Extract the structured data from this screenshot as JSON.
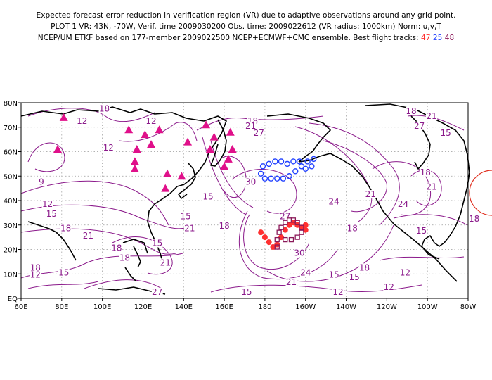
{
  "header": {
    "line1": "Expected forecast error reduction in verification region (VR) due to adaptive observations around any grid point.",
    "line2": "PLOT 1 VR: 43N, -70W, Verif. time 2009030200 Obs. time: 2009022612 (VR radius: 1000km) Norm: u,v,T",
    "line3_prefix": "NCEP/UM ETKF based on 177-member 2009022500 NCEP+ECMWF+CMC ensemble. Best flight tracks:",
    "track_ids": [
      "47",
      "25",
      "48"
    ],
    "track_colors": [
      "#ff3030",
      "#2040ff",
      "#8b1a5a"
    ]
  },
  "chart_data": {
    "type": "contour-map",
    "x_axis": {
      "ticks": [
        "60E",
        "80E",
        "100E",
        "120E",
        "140E",
        "160E",
        "180",
        "160W",
        "140W",
        "120W",
        "100W",
        "80W"
      ],
      "range_deg_east": [
        60,
        280
      ]
    },
    "y_axis": {
      "ticks": [
        "EQ",
        "10N",
        "20N",
        "30N",
        "40N",
        "50N",
        "60N",
        "70N",
        "80N"
      ],
      "range_deg_north": [
        0,
        80
      ]
    },
    "grid": true,
    "contour_color": "#8b1a8b",
    "contour_labels": [
      {
        "text": "18",
        "lon": 101,
        "lat": 77
      },
      {
        "text": "12",
        "lon": 124,
        "lat": 72
      },
      {
        "text": "12",
        "lon": 90,
        "lat": 72
      },
      {
        "text": "18",
        "lon": 174,
        "lat": 72
      },
      {
        "text": "18",
        "lon": 252,
        "lat": 76
      },
      {
        "text": "21",
        "lon": 262,
        "lat": 74
      },
      {
        "text": "27",
        "lon": 256,
        "lat": 70
      },
      {
        "text": "15",
        "lon": 269,
        "lat": 67
      },
      {
        "text": "12",
        "lon": 103,
        "lat": 61
      },
      {
        "text": "21",
        "lon": 173,
        "lat": 70
      },
      {
        "text": "27",
        "lon": 177,
        "lat": 67
      },
      {
        "text": "9",
        "lon": 70,
        "lat": 47
      },
      {
        "text": "12",
        "lon": 73,
        "lat": 38
      },
      {
        "text": "15",
        "lon": 75,
        "lat": 34
      },
      {
        "text": "18",
        "lon": 82,
        "lat": 28
      },
      {
        "text": "18",
        "lon": 67,
        "lat": 12
      },
      {
        "text": "21",
        "lon": 93,
        "lat": 25
      },
      {
        "text": "15",
        "lon": 127,
        "lat": 22
      },
      {
        "text": "15",
        "lon": 141,
        "lat": 33
      },
      {
        "text": "21",
        "lon": 143,
        "lat": 28
      },
      {
        "text": "15",
        "lon": 152,
        "lat": 41
      },
      {
        "text": "30",
        "lon": 173,
        "lat": 47
      },
      {
        "text": "24",
        "lon": 214,
        "lat": 39
      },
      {
        "text": "21",
        "lon": 232,
        "lat": 42
      },
      {
        "text": "24",
        "lon": 248,
        "lat": 38
      },
      {
        "text": "18",
        "lon": 259,
        "lat": 51
      },
      {
        "text": "21",
        "lon": 262,
        "lat": 45
      },
      {
        "text": "18",
        "lon": 283,
        "lat": 32
      },
      {
        "text": "15",
        "lon": 257,
        "lat": 27
      },
      {
        "text": "18",
        "lon": 223,
        "lat": 28
      },
      {
        "text": "27",
        "lon": 190,
        "lat": 33
      },
      {
        "text": "30",
        "lon": 197,
        "lat": 18
      },
      {
        "text": "24",
        "lon": 200,
        "lat": 10
      },
      {
        "text": "21",
        "lon": 193,
        "lat": 6
      },
      {
        "text": "18",
        "lon": 160,
        "lat": 29
      },
      {
        "text": "18",
        "lon": 107,
        "lat": 20
      },
      {
        "text": "18",
        "lon": 111,
        "lat": 16
      },
      {
        "text": "21",
        "lon": 131,
        "lat": 14
      },
      {
        "text": "15",
        "lon": 81,
        "lat": 10
      },
      {
        "text": "12",
        "lon": 67,
        "lat": 9
      },
      {
        "text": "27",
        "lon": 127,
        "lat": 2
      },
      {
        "text": "15",
        "lon": 171,
        "lat": 2
      },
      {
        "text": "12",
        "lon": 216,
        "lat": 2
      },
      {
        "text": "15",
        "lon": 224,
        "lat": 8
      },
      {
        "text": "18",
        "lon": 229,
        "lat": 12
      },
      {
        "text": "12",
        "lon": 249,
        "lat": 10
      },
      {
        "text": "12",
        "lon": 241,
        "lat": 4
      },
      {
        "text": "15",
        "lon": 214,
        "lat": 9
      }
    ],
    "observation_sites": [
      {
        "lon": 81,
        "lat": 74
      },
      {
        "lon": 78,
        "lat": 61
      },
      {
        "lon": 113,
        "lat": 69
      },
      {
        "lon": 121,
        "lat": 67
      },
      {
        "lon": 117,
        "lat": 61
      },
      {
        "lon": 124,
        "lat": 63
      },
      {
        "lon": 128,
        "lat": 69
      },
      {
        "lon": 116,
        "lat": 56
      },
      {
        "lon": 116,
        "lat": 53
      },
      {
        "lon": 132,
        "lat": 51
      },
      {
        "lon": 142,
        "lat": 64
      },
      {
        "lon": 151,
        "lat": 71
      },
      {
        "lon": 155,
        "lat": 66
      },
      {
        "lon": 153,
        "lat": 61
      },
      {
        "lon": 163,
        "lat": 68
      },
      {
        "lon": 164,
        "lat": 61
      },
      {
        "lon": 162,
        "lat": 57
      },
      {
        "lon": 160,
        "lat": 54
      },
      {
        "lon": 139,
        "lat": 50
      },
      {
        "lon": 131,
        "lat": 45
      }
    ],
    "tracks": [
      {
        "id": "47",
        "color": "#ff3030",
        "points": [
          [
            178,
            27
          ],
          [
            180,
            25
          ],
          [
            182,
            23
          ],
          [
            184,
            21
          ],
          [
            186,
            22
          ],
          [
            188,
            25
          ],
          [
            190,
            28
          ],
          [
            192,
            30
          ],
          [
            194,
            31
          ],
          [
            196,
            30
          ],
          [
            198,
            29
          ],
          [
            200,
            28
          ],
          [
            200,
            30
          ]
        ]
      },
      {
        "id": "25",
        "color": "#2040ff",
        "points": [
          [
            178,
            51
          ],
          [
            180,
            49
          ],
          [
            183,
            49
          ],
          [
            186,
            49
          ],
          [
            189,
            49
          ],
          [
            192,
            50
          ],
          [
            195,
            52
          ],
          [
            198,
            54
          ],
          [
            201,
            56
          ],
          [
            204,
            57
          ],
          [
            203,
            54
          ],
          [
            200,
            53
          ],
          [
            197,
            56
          ],
          [
            194,
            56
          ],
          [
            191,
            55
          ],
          [
            188,
            56
          ],
          [
            185,
            56
          ],
          [
            182,
            55
          ],
          [
            179,
            54
          ]
        ]
      },
      {
        "id": "48",
        "color": "#8b1a5a",
        "points": [
          [
            186,
            21
          ],
          [
            186,
            24
          ],
          [
            187,
            27
          ],
          [
            188,
            29
          ],
          [
            190,
            31
          ],
          [
            192,
            32
          ],
          [
            194,
            32
          ],
          [
            196,
            31
          ],
          [
            198,
            29
          ],
          [
            198,
            27
          ],
          [
            196,
            25
          ],
          [
            193,
            24
          ],
          [
            190,
            24
          ]
        ]
      }
    ],
    "verification_region": {
      "lat": 43,
      "lon": -70,
      "radius_km": 1000
    }
  }
}
